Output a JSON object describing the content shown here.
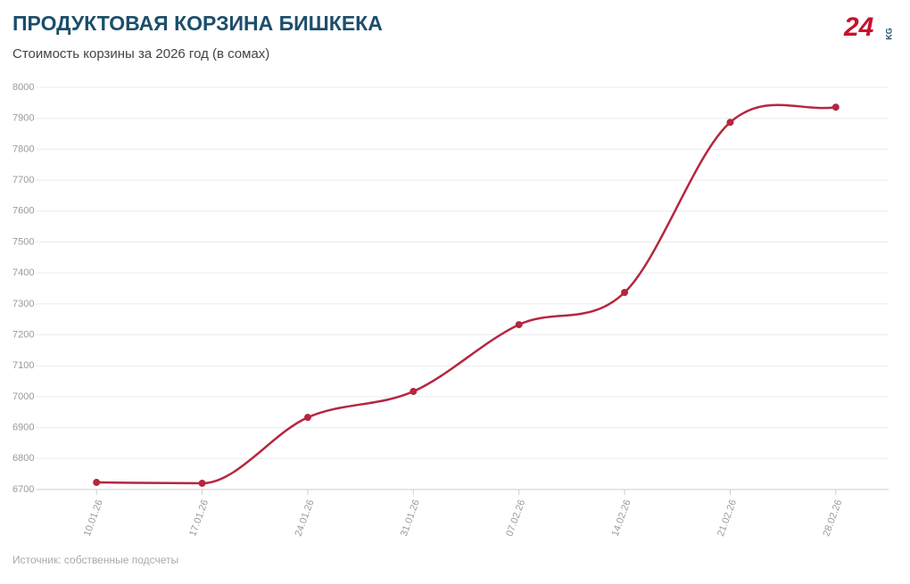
{
  "chart_data": {
    "type": "line",
    "title": "ПРОДУКТОВАЯ КОРЗИНА БИШКЕКА",
    "subtitle": "Стоимость корзины за 2026 год (в сомах)",
    "source": "Источник: собственные подсчеты",
    "logo": {
      "number": "24",
      "suffix": "KG"
    },
    "categories": [
      "10.01.26",
      "17.01.26",
      "24.01.26",
      "31.01.26",
      "07.02.26",
      "14.02.26",
      "21.02.26",
      "28.02.26"
    ],
    "series": [
      {
        "name": "Стоимость корзины",
        "color": "#b5263f",
        "values": [
          6723,
          6720,
          6933,
          7017,
          7233,
          7337,
          7887,
          7936
        ]
      }
    ],
    "ylim": [
      6700,
      8000
    ],
    "yticks": [
      6700,
      6800,
      6900,
      7000,
      7100,
      7200,
      7300,
      7400,
      7500,
      7600,
      7700,
      7800,
      7900,
      8000
    ],
    "grid": true
  }
}
